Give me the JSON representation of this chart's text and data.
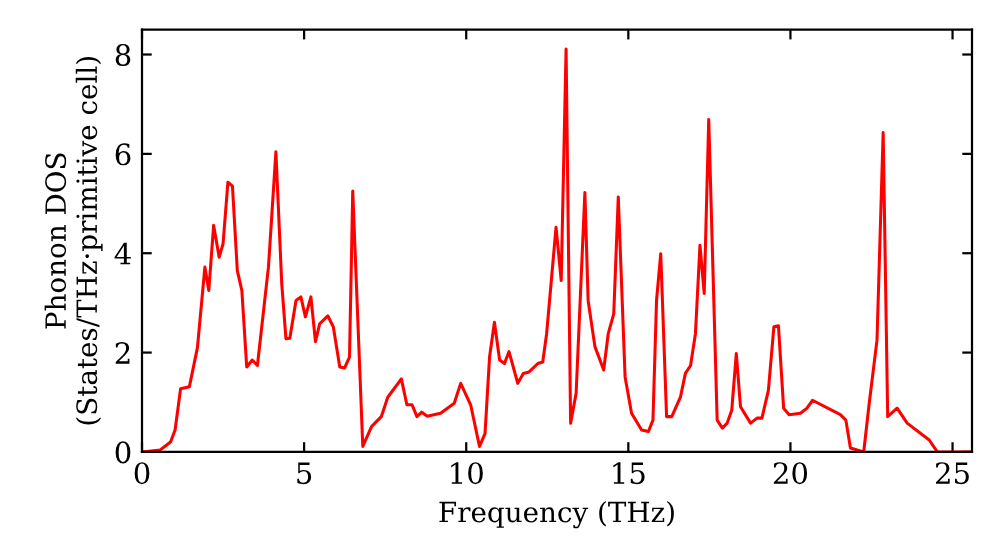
{
  "chart_data": {
    "type": "line",
    "xlabel": "Frequency (THz)",
    "ylabel": "Phonon DOS\n(States/THz·primitive cell)",
    "xlim": [
      0,
      25.6
    ],
    "ylim": [
      0,
      8.5
    ],
    "xticks": [
      0,
      5,
      10,
      15,
      20,
      25
    ],
    "yticks": [
      0,
      2,
      4,
      6,
      8
    ],
    "grid": false,
    "legend": false,
    "marker": "none",
    "line_style": "solid",
    "series": [
      {
        "color": "#ff0000",
        "x": [
          0,
          0.56,
          0.88,
          1.02,
          1.19,
          1.46,
          1.71,
          1.94,
          2.06,
          2.21,
          2.38,
          2.5,
          2.65,
          2.79,
          2.94,
          3.08,
          3.23,
          3.4,
          3.56,
          3.9,
          4.13,
          4.31,
          4.44,
          4.56,
          4.75,
          4.9,
          5.04,
          5.21,
          5.35,
          5.48,
          5.73,
          5.9,
          6.1,
          6.25,
          6.4,
          6.5,
          6.81,
          7.08,
          7.38,
          7.58,
          8.0,
          8.17,
          8.33,
          8.48,
          8.63,
          8.79,
          9.21,
          9.63,
          9.83,
          10.14,
          10.41,
          10.58,
          10.72,
          10.87,
          11.03,
          11.18,
          11.32,
          11.59,
          11.76,
          11.94,
          12.21,
          12.36,
          12.48,
          12.77,
          12.93,
          13.08,
          13.22,
          13.39,
          13.66,
          13.76,
          13.97,
          14.24,
          14.38,
          14.55,
          14.69,
          14.9,
          15.1,
          15.41,
          15.62,
          15.76,
          15.87,
          16.0,
          16.18,
          16.34,
          16.61,
          16.76,
          16.92,
          17.07,
          17.21,
          17.34,
          17.48,
          17.74,
          17.9,
          18.05,
          18.19,
          18.33,
          18.46,
          18.77,
          18.97,
          19.12,
          19.32,
          19.49,
          19.63,
          19.79,
          19.96,
          20.31,
          20.51,
          20.68,
          21.54,
          21.71,
          21.85,
          22.26,
          22.43,
          22.67,
          22.86,
          23.0,
          23.29,
          23.6,
          24.28,
          24.53,
          25.56
        ],
        "values": [
          0,
          0.04,
          0.2,
          0.44,
          1.27,
          1.31,
          2.1,
          3.72,
          3.25,
          4.56,
          3.92,
          4.19,
          5.43,
          5.35,
          3.65,
          3.25,
          1.71,
          1.85,
          1.74,
          3.72,
          6.04,
          3.39,
          2.28,
          2.29,
          3.05,
          3.12,
          2.72,
          3.12,
          2.22,
          2.58,
          2.74,
          2.52,
          1.71,
          1.69,
          1.91,
          5.25,
          0.11,
          0.51,
          0.71,
          1.1,
          1.47,
          0.95,
          0.95,
          0.71,
          0.8,
          0.72,
          0.78,
          0.98,
          1.38,
          0.94,
          0.11,
          0.37,
          1.91,
          2.61,
          1.85,
          1.78,
          2.02,
          1.38,
          1.58,
          1.61,
          1.78,
          1.81,
          2.38,
          4.52,
          3.45,
          8.11,
          0.58,
          1.18,
          5.22,
          3.05,
          2.12,
          1.65,
          2.38,
          2.78,
          5.13,
          1.51,
          0.78,
          0.44,
          0.41,
          0.64,
          3.05,
          3.99,
          0.71,
          0.71,
          1.11,
          1.58,
          1.74,
          2.38,
          4.16,
          3.19,
          6.69,
          0.64,
          0.48,
          0.58,
          0.84,
          1.98,
          0.91,
          0.58,
          0.68,
          0.68,
          1.24,
          2.52,
          2.54,
          0.88,
          0.75,
          0.78,
          0.88,
          1.04,
          0.75,
          0.64,
          0.08,
          0,
          0.98,
          2.25,
          6.43,
          0.71,
          0.88,
          0.58,
          0.24,
          0,
          0
        ]
      }
    ]
  }
}
